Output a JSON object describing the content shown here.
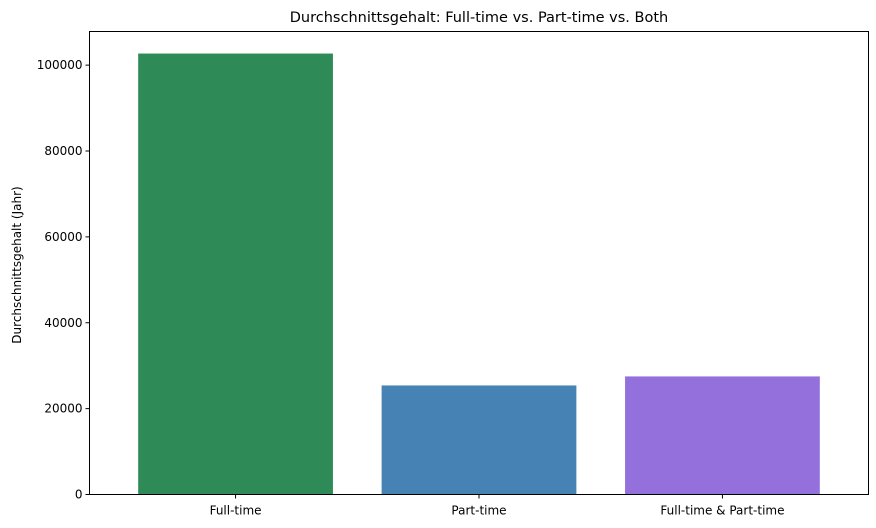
{
  "chart_data": {
    "type": "bar",
    "title": "Durchschnittsgehalt: Full-time vs. Part-time vs. Both",
    "xlabel": "",
    "ylabel": "Durchschnittsgehalt (Jahr)",
    "categories": [
      "Full-time",
      "Part-time",
      "Full-time & Part-time"
    ],
    "values": [
      102700,
      25400,
      27500
    ],
    "colors": [
      "#2e8b57",
      "#4682b4",
      "#9370db"
    ],
    "ylim": [
      0,
      107835
    ],
    "yticks": [
      0,
      20000,
      40000,
      60000,
      80000,
      100000
    ],
    "grid": false,
    "legend": "none"
  }
}
